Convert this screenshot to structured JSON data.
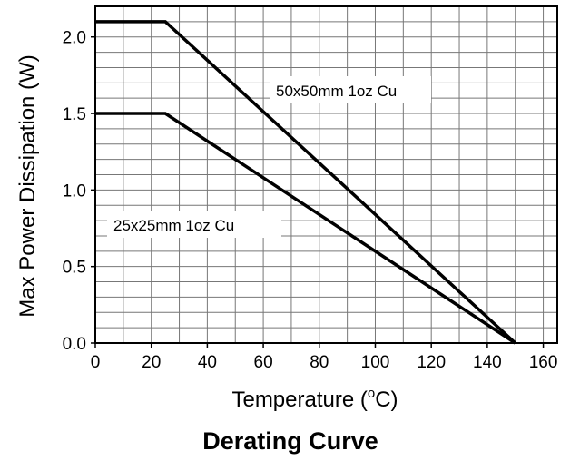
{
  "chart_data": {
    "type": "line",
    "title": "Derating Curve",
    "xlabel": "Temperature (",
    "xlabel_degree": "o",
    "xlabel_unit": "C)",
    "ylabel": "Max Power Dissipation (W)",
    "xlim": [
      0,
      165
    ],
    "ylim": [
      0,
      2.2
    ],
    "grid": true,
    "xticks": [
      0,
      20,
      40,
      60,
      80,
      100,
      120,
      140,
      160
    ],
    "xtick_labels": [
      "0",
      "20",
      "40",
      "60",
      "80",
      "100",
      "120",
      "140",
      "160"
    ],
    "yticks": [
      0,
      0.5,
      1.0,
      1.5,
      2.0
    ],
    "ytick_labels": [
      "0.0",
      "0.5",
      "1.0",
      "1.5",
      "2.0"
    ],
    "series": [
      {
        "name": "50x50mm 1oz Cu",
        "x": [
          0,
          25,
          150
        ],
        "y": [
          2.1,
          2.1,
          0
        ]
      },
      {
        "name": "25x25mm 1oz Cu",
        "x": [
          0,
          25,
          150
        ],
        "y": [
          1.5,
          1.5,
          0
        ]
      }
    ],
    "colors": {
      "line": "#000000",
      "grid": "#777777"
    }
  }
}
